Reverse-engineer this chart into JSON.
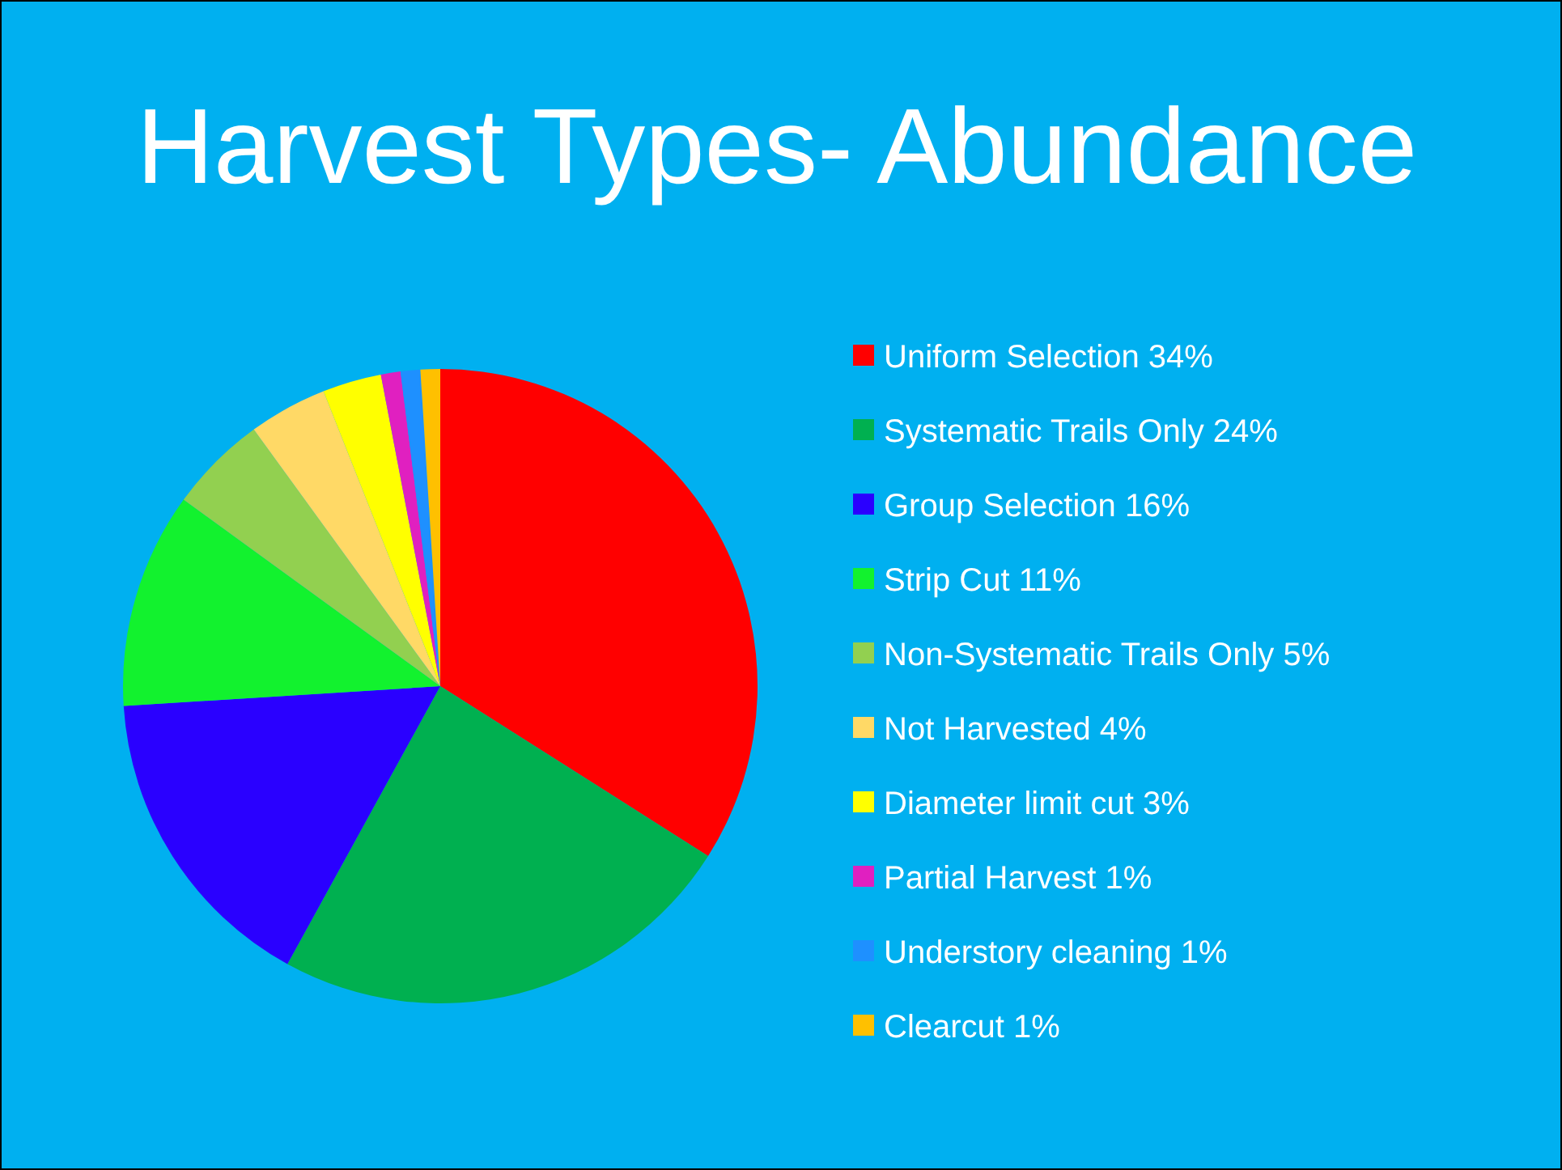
{
  "chart_data": {
    "type": "pie",
    "title": "Harvest Types- Abundance",
    "categories": [
      "Uniform Selection",
      "Systematic Trails Only",
      "Group Selection",
      "Strip Cut",
      "Non-Systematic Trails Only",
      "Not Harvested",
      "Diameter limit cut",
      "Partial Harvest",
      "Understory cleaning",
      "Clearcut"
    ],
    "values": [
      34,
      24,
      16,
      11,
      5,
      4,
      3,
      1,
      1,
      1
    ],
    "value_labels": [
      "34%",
      "24%",
      "16%",
      "11%",
      "5%",
      "4%",
      "3%",
      "1%",
      "1%",
      "1%"
    ],
    "colors": [
      "#ff0000",
      "#00b050",
      "#2a00ff",
      "#12f22e",
      "#92d050",
      "#ffd966",
      "#ffff00",
      "#e020c0",
      "#1e90ff",
      "#ffc000"
    ],
    "legend": "right"
  }
}
